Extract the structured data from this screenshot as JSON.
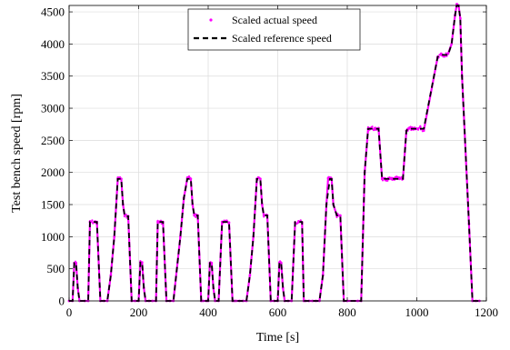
{
  "chart_data": {
    "type": "line",
    "title": "",
    "xlabel": "Time [s]",
    "ylabel": "Test bench speed [rpm]",
    "xlim": [
      0,
      1200
    ],
    "ylim": [
      0,
      4600
    ],
    "xticks": [
      0,
      200,
      400,
      600,
      800,
      1000,
      1200
    ],
    "yticks": [
      0,
      500,
      1000,
      1500,
      2000,
      2500,
      3000,
      3500,
      4000,
      4500
    ],
    "grid": true,
    "legend_position": "top-center",
    "series": [
      {
        "name": "Scaled actual speed",
        "style": "dots",
        "color": "#ff00ff",
        "x": [
          0,
          10,
          15,
          20,
          25,
          30,
          45,
          55,
          60,
          75,
          80,
          90,
          100,
          110,
          120,
          130,
          140,
          145,
          150,
          155,
          160,
          170,
          180,
          190,
          200,
          205,
          210,
          215,
          220,
          230,
          240,
          250,
          255,
          260,
          270,
          280,
          290,
          300,
          320,
          330,
          340,
          345,
          350,
          355,
          360,
          370,
          380,
          385,
          395,
          400,
          405,
          410,
          415,
          420,
          430,
          440,
          450,
          460,
          470,
          475,
          480,
          490,
          500,
          510,
          520,
          530,
          540,
          545,
          550,
          555,
          560,
          570,
          580,
          590,
          600,
          605,
          610,
          615,
          620,
          630,
          640,
          650,
          660,
          670,
          675,
          680,
          690,
          700,
          710,
          720,
          730,
          740,
          745,
          750,
          755,
          760,
          770,
          780,
          790,
          800,
          830,
          840,
          850,
          860,
          870,
          880,
          885,
          890,
          900,
          910,
          920,
          930,
          940,
          950,
          960,
          970,
          975,
          980,
          990,
          1000,
          1010,
          1020,
          1060,
          1070,
          1080,
          1090,
          1100,
          1110,
          1115,
          1120,
          1125,
          1130,
          1150,
          1160,
          1170,
          1180
        ],
        "y": [
          0,
          0,
          590,
          590,
          200,
          0,
          0,
          0,
          1230,
          1230,
          1230,
          0,
          0,
          0,
          400,
          1000,
          1900,
          1910,
          1900,
          1500,
          1320,
          1320,
          0,
          0,
          0,
          600,
          600,
          200,
          0,
          0,
          0,
          0,
          1230,
          1230,
          1230,
          0,
          0,
          0,
          1000,
          1600,
          1910,
          1920,
          1900,
          1500,
          1330,
          1330,
          0,
          0,
          0,
          0,
          590,
          590,
          200,
          0,
          0,
          1230,
          1230,
          1220,
          0,
          0,
          0,
          0,
          0,
          0,
          400,
          1000,
          1900,
          1920,
          1900,
          1500,
          1330,
          1330,
          0,
          0,
          0,
          600,
          590,
          200,
          0,
          0,
          0,
          1220,
          1240,
          1220,
          0,
          0,
          0,
          0,
          0,
          0,
          400,
          1500,
          1910,
          1920,
          1900,
          1500,
          1330,
          1330,
          0,
          0,
          0,
          0,
          2000,
          2680,
          2700,
          2670,
          2680,
          2690,
          1900,
          1880,
          1900,
          1890,
          1910,
          1900,
          1900,
          2650,
          2680,
          2690,
          2670,
          2680,
          2700,
          2650,
          3800,
          3850,
          3820,
          3850,
          4000,
          4450,
          4620,
          4600,
          4400,
          3500,
          1200,
          0,
          0,
          0
        ]
      },
      {
        "name": "Scaled reference speed",
        "style": "dashed",
        "color": "#000000",
        "x": [
          0,
          10,
          15,
          20,
          25,
          30,
          45,
          55,
          60,
          75,
          80,
          90,
          100,
          110,
          120,
          130,
          140,
          150,
          155,
          160,
          170,
          180,
          190,
          200,
          205,
          210,
          215,
          220,
          230,
          240,
          250,
          255,
          260,
          270,
          280,
          290,
          300,
          320,
          330,
          340,
          350,
          355,
          360,
          370,
          380,
          385,
          395,
          400,
          405,
          410,
          415,
          420,
          430,
          440,
          450,
          460,
          470,
          475,
          480,
          490,
          500,
          510,
          520,
          530,
          540,
          550,
          555,
          560,
          570,
          580,
          590,
          600,
          605,
          610,
          615,
          620,
          630,
          640,
          650,
          660,
          670,
          675,
          680,
          690,
          700,
          710,
          720,
          730,
          740,
          750,
          755,
          760,
          770,
          780,
          790,
          800,
          830,
          840,
          850,
          860,
          870,
          880,
          885,
          890,
          900,
          910,
          920,
          930,
          940,
          950,
          960,
          970,
          975,
          980,
          990,
          1000,
          1010,
          1020,
          1060,
          1070,
          1080,
          1090,
          1100,
          1110,
          1115,
          1120,
          1125,
          1130,
          1150,
          1160,
          1170,
          1180
        ],
        "y": [
          0,
          0,
          590,
          590,
          200,
          0,
          0,
          0,
          1230,
          1230,
          1230,
          0,
          0,
          0,
          400,
          1000,
          1900,
          1900,
          1500,
          1320,
          1320,
          0,
          0,
          0,
          600,
          600,
          200,
          0,
          0,
          0,
          0,
          1230,
          1230,
          1230,
          0,
          0,
          0,
          1000,
          1600,
          1900,
          1900,
          1500,
          1330,
          1330,
          0,
          0,
          0,
          0,
          590,
          590,
          200,
          0,
          0,
          1230,
          1230,
          1230,
          0,
          0,
          0,
          0,
          0,
          0,
          400,
          1000,
          1900,
          1900,
          1500,
          1330,
          1330,
          0,
          0,
          0,
          600,
          590,
          200,
          0,
          0,
          0,
          1230,
          1230,
          1230,
          0,
          0,
          0,
          0,
          0,
          0,
          400,
          1500,
          1900,
          1900,
          1500,
          1330,
          1330,
          0,
          0,
          0,
          0,
          2000,
          2680,
          2680,
          2680,
          2680,
          2680,
          1900,
          1900,
          1900,
          1900,
          1900,
          1900,
          1900,
          2650,
          2680,
          2680,
          2680,
          2680,
          2680,
          2680,
          3800,
          3830,
          3830,
          3830,
          4000,
          4450,
          4600,
          4600,
          4400,
          3500,
          1200,
          0,
          0,
          0
        ]
      }
    ]
  }
}
